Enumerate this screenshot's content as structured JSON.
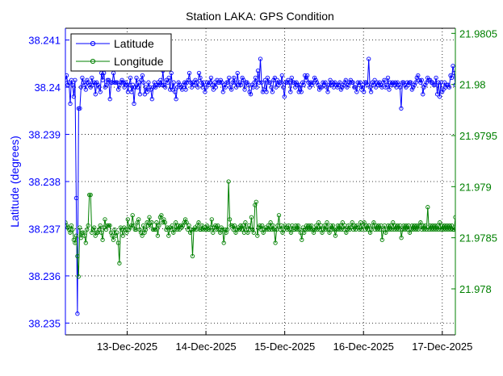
{
  "chart_data": {
    "type": "line",
    "title": "Station LAKA: GPS Condition",
    "xlabel": "",
    "ylabel_left": "Latitude (degrees)",
    "ylabel_right": "",
    "x_tick_labels": [
      "13-Dec-2025",
      "14-Dec-2025",
      "15-Dec-2025",
      "16-Dec-2025",
      "17-Dec-2025"
    ],
    "x_ticks_days": [
      1,
      2,
      3,
      4,
      5
    ],
    "xlim_days": [
      0.216,
      5.166
    ],
    "left_axis": {
      "ylim": [
        38.23475,
        38.24125
      ],
      "ticks": [
        38.235,
        38.236,
        38.237,
        38.238,
        38.239,
        38.24,
        38.241
      ],
      "tick_labels": [
        "38.235",
        "38.236",
        "38.237",
        "38.238",
        "38.239",
        "38.24",
        "38.241"
      ],
      "color": "#0000ff"
    },
    "right_axis": {
      "ylim": [
        21.97755,
        21.98055
      ],
      "ticks": [
        21.978,
        21.9785,
        21.979,
        21.9795,
        21.98,
        21.9805
      ],
      "tick_labels": [
        "21.978",
        "21.9785",
        "21.979",
        "21.9795",
        "21.98",
        "21.9805"
      ],
      "color": "#008000"
    },
    "legend": {
      "position": "top-left",
      "entries": [
        "Latitude",
        "Longitude"
      ]
    },
    "grid": true,
    "series": [
      {
        "name": "Latitude",
        "axis": "left",
        "color": "#0000ff",
        "marker": "circle",
        "x_start_days": 0.216,
        "x_end_days": 5.166,
        "values": [
          38.24015,
          38.24025,
          38.24005,
          38.2401,
          38.23965,
          38.24015,
          38.24005,
          38.2398,
          38.24015,
          38.23765,
          38.2352,
          38.23955,
          38.23955,
          38.24,
          38.2402,
          38.2401,
          38.24005,
          38.23995,
          38.24015,
          38.2401,
          38.24005,
          38.24,
          38.2402,
          38.24005,
          38.2401,
          38.23985,
          38.2401,
          38.24005,
          38.24,
          38.2399,
          38.2403,
          38.24015,
          38.2403,
          38.24,
          38.24005,
          38.24015,
          38.24015,
          38.23975,
          38.2401,
          38.2401,
          38.2403,
          38.2401,
          38.2401,
          38.2401,
          38.23995,
          38.24005,
          38.2401,
          38.24015,
          38.2401,
          38.24,
          38.2401,
          38.24005,
          38.2399,
          38.24005,
          38.2402,
          38.2399,
          38.24005,
          38.23965,
          38.24,
          38.2402,
          38.24,
          38.2401,
          38.23985,
          38.24015,
          38.24025,
          38.2401,
          38.23985,
          38.24,
          38.2399,
          38.2401,
          38.24,
          38.23995,
          38.23975,
          38.24,
          38.2401,
          38.24,
          38.24005,
          38.2401,
          38.24005,
          38.24015,
          38.24005,
          38.24035,
          38.24005,
          38.24,
          38.24015,
          38.2401,
          38.2402,
          38.23995,
          38.2403,
          38.23995,
          38.2401,
          38.2399,
          38.23975,
          38.24,
          38.2401,
          38.24005,
          38.24,
          38.23995,
          38.24005,
          38.2401,
          38.23995,
          38.2401,
          38.24015,
          38.2403,
          38.2401,
          38.24,
          38.2401,
          38.24005,
          38.24015,
          38.2401,
          38.24,
          38.2403,
          38.2402,
          38.2401,
          38.24,
          38.2401,
          38.2399,
          38.24,
          38.2401,
          38.24005,
          38.2401,
          38.2402,
          38.24005,
          38.23995,
          38.2401,
          38.24,
          38.24015,
          38.2401,
          38.2401,
          38.24015,
          38.2401,
          38.2399,
          38.24005,
          38.24,
          38.2401,
          38.2401,
          38.2402,
          38.24,
          38.23995,
          38.2401,
          38.2402,
          38.2401,
          38.24,
          38.2403,
          38.24005,
          38.2401,
          38.24005,
          38.2402,
          38.24015,
          38.23995,
          38.2401,
          38.2401,
          38.24005,
          38.2399,
          38.23985,
          38.24005,
          38.24,
          38.2401,
          38.2402,
          38.24,
          38.24035,
          38.2401,
          38.2406,
          38.2401,
          38.2399,
          38.23995,
          38.24015,
          38.2399,
          38.2402,
          38.2401,
          38.2401,
          38.24,
          38.2399,
          38.24015,
          38.2402,
          38.24,
          38.24015,
          38.24005,
          38.2401,
          38.2401,
          38.24025,
          38.24,
          38.2398,
          38.2401,
          38.2401,
          38.24015,
          38.2401,
          38.2399,
          38.2402,
          38.2401,
          38.2401,
          38.24,
          38.2401,
          38.24005,
          38.2399,
          38.24005,
          38.2399,
          38.2401,
          38.24005,
          38.24025,
          38.24015,
          38.24025,
          38.2401,
          38.24,
          38.2401,
          38.24005,
          38.2401,
          38.2402,
          38.24015,
          38.2401,
          38.24005,
          38.23995,
          38.24,
          38.24,
          38.2401,
          38.24005,
          38.2401,
          38.24,
          38.2399,
          38.24005,
          38.24015,
          38.24005,
          38.2401,
          38.24,
          38.2401,
          38.24005,
          38.24,
          38.24005,
          38.2401,
          38.23995,
          38.24,
          38.24005,
          38.2401,
          38.24015,
          38.24,
          38.24005,
          38.2401,
          38.24015,
          38.2401,
          38.2401,
          38.24,
          38.24,
          38.2399,
          38.2401,
          38.24005,
          38.2401,
          38.23995,
          38.24005,
          38.2399,
          38.2401,
          38.2401,
          38.24005,
          38.2406,
          38.24,
          38.2399,
          38.2401,
          38.24005,
          38.24015,
          38.24,
          38.2401,
          38.24005,
          38.2401,
          38.24005,
          38.24,
          38.2401,
          38.24015,
          38.24,
          38.24005,
          38.2402,
          38.23995,
          38.2401,
          38.24005,
          38.2401,
          38.24005,
          38.2401,
          38.24,
          38.2401,
          38.24005,
          38.24,
          38.23955,
          38.2401,
          38.2401,
          38.24005,
          38.24,
          38.2401,
          38.24005,
          38.2401,
          38.2401,
          38.23995,
          38.24,
          38.24005,
          38.2401,
          38.2402,
          38.24025,
          38.24015,
          38.2401,
          38.24015,
          38.23985,
          38.24,
          38.24005,
          38.2401,
          38.2402,
          38.24015,
          38.24015,
          38.2401,
          38.2401,
          38.24005,
          38.24005,
          38.2402,
          38.23985,
          38.2401,
          38.2398,
          38.2401,
          38.2399,
          38.23995,
          38.2401,
          38.24,
          38.24005,
          38.24005,
          38.24,
          38.24025,
          38.2402,
          38.24045,
          38.2403,
          38.24005
        ]
      },
      {
        "name": "Longitude",
        "axis": "right",
        "color": "#008000",
        "marker": "circle",
        "x_start_days": 0.216,
        "x_end_days": 5.166,
        "values": [
          21.97865,
          21.97862,
          21.9786,
          21.97858,
          21.97855,
          21.97862,
          21.97858,
          21.97848,
          21.97845,
          21.97852,
          21.97832,
          21.97812,
          21.9786,
          21.9785,
          21.97855,
          21.97855,
          21.97852,
          21.97845,
          21.97858,
          21.97862,
          21.97892,
          21.97892,
          21.97855,
          21.97858,
          21.9786,
          21.97852,
          21.97855,
          21.97855,
          21.97858,
          21.97862,
          21.97855,
          21.97848,
          21.9786,
          21.97868,
          21.97858,
          21.97862,
          21.97862,
          21.97862,
          21.97855,
          21.97852,
          21.97848,
          21.97858,
          21.97852,
          21.97855,
          21.97845,
          21.97825,
          21.9786,
          21.97858,
          21.97852,
          21.9786,
          21.97858,
          21.97855,
          21.97868,
          21.97858,
          21.9786,
          21.97862,
          21.97872,
          21.97862,
          21.97858,
          21.97858,
          21.97865,
          21.97868,
          21.97858,
          21.97855,
          21.97852,
          21.97862,
          21.97855,
          21.97858,
          21.97865,
          21.97862,
          21.9787,
          21.97862,
          21.97865,
          21.97858,
          21.97858,
          21.97858,
          21.97865,
          21.97852,
          21.97862,
          21.9787,
          21.97872,
          21.97865,
          21.97868,
          21.97865,
          21.97858,
          21.9786,
          21.97852,
          21.9786,
          21.97858,
          21.97862,
          21.97855,
          21.97858,
          21.97865,
          21.97858,
          21.97862,
          21.97858,
          21.97862,
          21.9786,
          21.97862,
          21.97865,
          21.97868,
          21.97865,
          21.97858,
          21.97862,
          21.97855,
          21.97858,
          21.97832,
          21.97858,
          21.9786,
          21.97858,
          21.97862,
          21.97865,
          21.97858,
          21.97858,
          21.97862,
          21.97858,
          21.9786,
          21.97858,
          21.97862,
          21.97858,
          21.97858,
          21.9786,
          21.97868,
          21.97855,
          21.9786,
          21.97862,
          21.97858,
          21.97862,
          21.97858,
          21.97855,
          21.9786,
          21.97858,
          21.97845,
          21.97858,
          21.97855,
          21.97858,
          21.97905,
          21.97868,
          21.97862,
          21.97862,
          21.97858,
          21.97862,
          21.97855,
          21.97858,
          21.9786,
          21.97858,
          21.97862,
          21.97858,
          21.97862,
          21.97855,
          21.97865,
          21.97858,
          21.97855,
          21.97862,
          21.97858,
          21.9787,
          21.97858,
          21.97855,
          21.97882,
          21.97885,
          21.97852,
          21.9786,
          21.97862,
          21.97858,
          21.97862,
          21.97855,
          21.97858,
          21.9786,
          21.97858,
          21.97862,
          21.97858,
          21.97865,
          21.97858,
          21.97862,
          21.97858,
          21.97845,
          21.97858,
          21.97862,
          21.97872,
          21.97858,
          21.97862,
          21.97855,
          21.97858,
          21.97862,
          21.9786,
          21.97858,
          21.97862,
          21.97858,
          21.97855,
          21.97862,
          21.97858,
          21.97858,
          21.97862,
          21.97858,
          21.97862,
          21.97858,
          21.97855,
          21.97848,
          21.9786,
          21.97855,
          21.97858,
          21.97862,
          21.97858,
          21.97862,
          21.97858,
          21.97862,
          21.97858,
          21.97855,
          21.97858,
          21.97862,
          21.97858,
          21.97865,
          21.97858,
          21.97862,
          21.97855,
          21.97858,
          21.97862,
          21.97858,
          21.97865,
          21.97858,
          21.97855,
          21.97862,
          21.97858,
          21.97862,
          21.97858,
          21.97852,
          21.97858,
          21.97862,
          21.97858,
          21.97862,
          21.97858,
          21.97865,
          21.97858,
          21.97862,
          21.97855,
          21.97858,
          21.97862,
          21.97858,
          21.9786,
          21.97865,
          21.97858,
          21.97862,
          21.97858,
          21.97862,
          21.9786,
          21.97858,
          21.97865,
          21.97858,
          21.97862,
          21.97865,
          21.97858,
          21.97862,
          21.97858,
          21.97862,
          21.97855,
          21.97858,
          21.97862,
          21.97865,
          21.97858,
          21.97862,
          21.97858,
          21.97862,
          21.97858,
          21.97862,
          21.97848,
          21.97858,
          21.97862,
          21.97855,
          21.97858,
          21.97862,
          21.97858,
          21.97862,
          21.97858,
          21.97865,
          21.97858,
          21.97862,
          21.97858,
          21.97862,
          21.97858,
          21.97862,
          21.9785,
          21.97858,
          21.97862,
          21.97858,
          21.97862,
          21.97858,
          21.97862,
          21.97855,
          21.97858,
          21.97862,
          21.97858,
          21.97862,
          21.97858,
          21.97862,
          21.97858,
          21.97862,
          21.97865,
          21.97858,
          21.97862,
          21.97858,
          21.97862,
          21.97858,
          21.9788,
          21.97858,
          21.97862,
          21.97858,
          21.97862,
          21.97858,
          21.97862,
          21.97858,
          21.97862,
          21.97858,
          21.97865,
          21.97858,
          21.97862,
          21.97858,
          21.97862,
          21.97858,
          21.97862,
          21.97858,
          21.97862,
          21.97858,
          21.97862,
          21.97858,
          21.97858,
          21.9787
        ]
      }
    ]
  }
}
